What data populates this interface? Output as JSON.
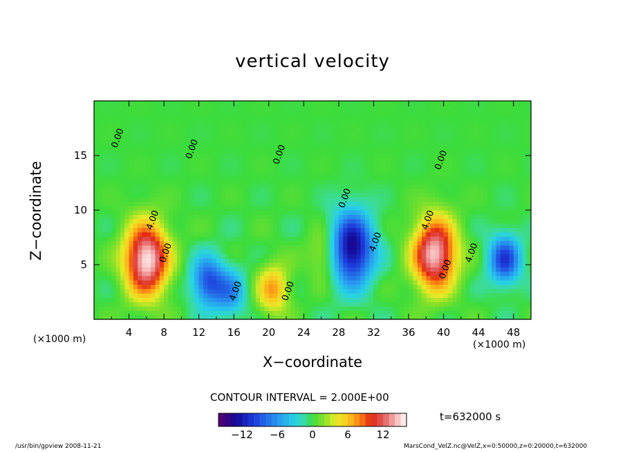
{
  "chart_data": {
    "type": "heatmap",
    "title": "vertical velocity",
    "xlabel": "X−coordinate",
    "ylabel": "Z−coordinate",
    "x_unit_left": "(×1000 m)",
    "x_unit_right": "(×1000 m)",
    "xlim": [
      0,
      50
    ],
    "ylim": [
      0,
      20
    ],
    "xticks": [
      4,
      8,
      12,
      16,
      20,
      24,
      28,
      32,
      36,
      40,
      44,
      48
    ],
    "yticks": [
      5,
      10,
      15
    ],
    "contour_interval_text": "CONTOUR INTERVAL = 2.000E+00",
    "time_text": "t=632000 s",
    "colorbar": {
      "min": -16,
      "max": 16,
      "ticks": [
        -12,
        -6,
        0,
        6,
        12
      ],
      "tick_labels": [
        "−12",
        "−6",
        "0",
        "6",
        "12"
      ]
    },
    "features": [
      {
        "x": 6.0,
        "z": 5.5,
        "peak": 16
      },
      {
        "x": 13.0,
        "z": 3.5,
        "peak": -9
      },
      {
        "x": 15.5,
        "z": 2.5,
        "peak": -6
      },
      {
        "x": 20.5,
        "z": 2.8,
        "peak": 7
      },
      {
        "x": 26.5,
        "z": 6.0,
        "peak": 4
      },
      {
        "x": 29.5,
        "z": 6.5,
        "peak": -14
      },
      {
        "x": 39.0,
        "z": 6.0,
        "peak": 15
      },
      {
        "x": 47.0,
        "z": 5.5,
        "peak": -10
      }
    ],
    "contour_labels": [
      {
        "text": "4.00",
        "x": 7.0,
        "z": 9.0
      },
      {
        "text": "0.00",
        "x": 8.5,
        "z": 6.0
      },
      {
        "text": "0.00",
        "x": 3.0,
        "z": 16.5
      },
      {
        "text": "0.00",
        "x": 11.5,
        "z": 15.5
      },
      {
        "text": "0.00",
        "x": 21.5,
        "z": 15.0
      },
      {
        "text": "0.00",
        "x": 22.5,
        "z": 2.5
      },
      {
        "text": "4.00",
        "x": 16.5,
        "z": 2.5
      },
      {
        "text": "0.00",
        "x": 29.0,
        "z": 11.0
      },
      {
        "text": "4.00",
        "x": 32.5,
        "z": 7.0
      },
      {
        "text": "4.00",
        "x": 38.5,
        "z": 9.0
      },
      {
        "text": "0.00",
        "x": 40.5,
        "z": 4.5
      },
      {
        "text": "4.00",
        "x": 43.5,
        "z": 6.0
      },
      {
        "text": "0.00",
        "x": 40.0,
        "z": 14.5
      }
    ]
  },
  "footer": {
    "left": "/usr/bin/gpview   2008-11-21",
    "right": "MarsCond_VelZ.nc@VelZ,x=0:50000,z=0:20000,t=632000"
  }
}
